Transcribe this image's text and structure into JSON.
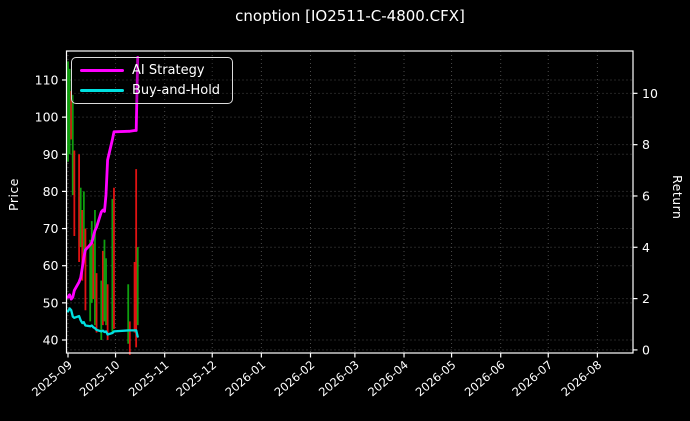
{
  "chart_data": {
    "type": "line",
    "title": "cnoption [IO2511-C-4800.CFX]",
    "ylabel_left": "Price",
    "ylabel_right": "Return",
    "ylim_price": [
      36.5,
      117.8
    ],
    "ylim_return": [
      -0.12,
      11.65
    ],
    "yticks_price": [
      40,
      50,
      60,
      70,
      80,
      90,
      100,
      110
    ],
    "yticks_return": [
      0,
      2,
      4,
      6,
      8,
      10
    ],
    "x_start": "2025-09-01",
    "xticks": [
      "2025-09",
      "2025-10",
      "2025-11",
      "2025-12",
      "2026-01",
      "2026-02",
      "2026-03",
      "2026-04",
      "2026-05",
      "2026-06",
      "2026-07",
      "2026-08"
    ],
    "grid": true,
    "legend_position": "upper left",
    "colors": {
      "background": "#000000",
      "frame": "#ffffff",
      "grid": "#4a4a4a",
      "text": "#ffffff",
      "bar_up": "#0fa00f",
      "bar_down": "#e01212"
    },
    "price_bars": [
      [
        "2025-09-01",
        88,
        115,
        "g"
      ],
      [
        "2025-09-02",
        90,
        113,
        "g"
      ],
      [
        "2025-09-03",
        94,
        107,
        "r"
      ],
      [
        "2025-09-04",
        79,
        106,
        "g"
      ],
      [
        "2025-09-05",
        68,
        91,
        "r"
      ],
      [
        "2025-09-08",
        61,
        90,
        "r"
      ],
      [
        "2025-09-09",
        65,
        81,
        "g"
      ],
      [
        "2025-09-10",
        56,
        75,
        "r"
      ],
      [
        "2025-09-11",
        63,
        80,
        "g"
      ],
      [
        "2025-09-12",
        48,
        70,
        "r"
      ],
      [
        "2025-09-15",
        45,
        67,
        "g"
      ],
      [
        "2025-09-16",
        50,
        72,
        "g"
      ],
      [
        "2025-09-17",
        51,
        66,
        "r"
      ],
      [
        "2025-09-18",
        44,
        75,
        "g"
      ],
      [
        "2025-09-19",
        42,
        58,
        "r"
      ],
      [
        "2025-09-22",
        40,
        56,
        "g"
      ],
      [
        "2025-09-23",
        44,
        64,
        "r"
      ],
      [
        "2025-09-24",
        45,
        67,
        "g"
      ],
      [
        "2025-09-25",
        44,
        62,
        "g"
      ],
      [
        "2025-09-26",
        40,
        55,
        "r"
      ],
      [
        "2025-09-29",
        42,
        78,
        "g"
      ],
      [
        "2025-09-30",
        43,
        81,
        "r"
      ],
      [
        "2025-10-09",
        39,
        55,
        "g"
      ],
      [
        "2025-10-10",
        36,
        45,
        "r"
      ],
      [
        "2025-10-13",
        42,
        61,
        "r"
      ],
      [
        "2025-10-14",
        38,
        86,
        "r"
      ],
      [
        "2025-10-15",
        44,
        65,
        "g"
      ]
    ],
    "series": [
      {
        "name": "AI Strategy",
        "color": "#ff00ff",
        "axis": "return",
        "points": [
          [
            "2025-09-01",
            2.05
          ],
          [
            "2025-09-02",
            2.15
          ],
          [
            "2025-09-03",
            1.98
          ],
          [
            "2025-09-04",
            2.06
          ],
          [
            "2025-09-05",
            2.32
          ],
          [
            "2025-09-08",
            2.65
          ],
          [
            "2025-09-09",
            2.82
          ],
          [
            "2025-09-10",
            3.2
          ],
          [
            "2025-09-11",
            3.6
          ],
          [
            "2025-09-12",
            3.9
          ],
          [
            "2025-09-15",
            4.1
          ],
          [
            "2025-09-16",
            4.18
          ],
          [
            "2025-09-17",
            4.42
          ],
          [
            "2025-09-18",
            4.65
          ],
          [
            "2025-09-19",
            4.78
          ],
          [
            "2025-09-22",
            5.38
          ],
          [
            "2025-09-23",
            5.45
          ],
          [
            "2025-09-24",
            5.4
          ],
          [
            "2025-09-25",
            6.05
          ],
          [
            "2025-09-26",
            7.4
          ],
          [
            "2025-09-29",
            8.2
          ],
          [
            "2025-09-30",
            8.5
          ],
          [
            "2025-10-09",
            8.52
          ],
          [
            "2025-10-10",
            8.52
          ],
          [
            "2025-10-13",
            8.55
          ],
          [
            "2025-10-14",
            8.55
          ],
          [
            "2025-10-15",
            11.4
          ]
        ]
      },
      {
        "name": "Buy-and-Hold",
        "color": "#00e0e0",
        "axis": "return",
        "points": [
          [
            "2025-09-01",
            1.5
          ],
          [
            "2025-09-02",
            1.62
          ],
          [
            "2025-09-03",
            1.55
          ],
          [
            "2025-09-04",
            1.3
          ],
          [
            "2025-09-05",
            1.25
          ],
          [
            "2025-09-08",
            1.32
          ],
          [
            "2025-09-09",
            1.15
          ],
          [
            "2025-09-10",
            1.05
          ],
          [
            "2025-09-11",
            1.08
          ],
          [
            "2025-09-12",
            0.95
          ],
          [
            "2025-09-15",
            0.92
          ],
          [
            "2025-09-16",
            0.95
          ],
          [
            "2025-09-17",
            0.88
          ],
          [
            "2025-09-18",
            0.85
          ],
          [
            "2025-09-19",
            0.78
          ],
          [
            "2025-09-22",
            0.72
          ],
          [
            "2025-09-23",
            0.75
          ],
          [
            "2025-09-24",
            0.7
          ],
          [
            "2025-09-25",
            0.72
          ],
          [
            "2025-09-26",
            0.6
          ],
          [
            "2025-09-29",
            0.66
          ],
          [
            "2025-09-30",
            0.72
          ],
          [
            "2025-10-09",
            0.76
          ],
          [
            "2025-10-10",
            0.76
          ],
          [
            "2025-10-13",
            0.76
          ],
          [
            "2025-10-14",
            0.76
          ],
          [
            "2025-10-15",
            0.52
          ]
        ]
      }
    ]
  }
}
